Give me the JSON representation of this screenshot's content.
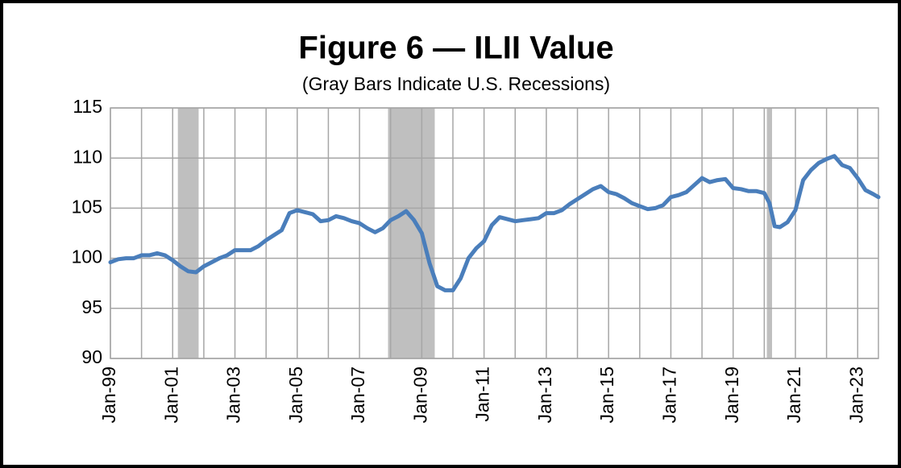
{
  "chart_data": {
    "type": "line",
    "title": "Figure 6 — ILII Value",
    "subtitle": "(Gray Bars Indicate U.S. Recessions)",
    "x": [
      "1999-01",
      "1999-04",
      "1999-07",
      "1999-10",
      "2000-01",
      "2000-04",
      "2000-07",
      "2000-10",
      "2001-01",
      "2001-04",
      "2001-07",
      "2001-10",
      "2002-01",
      "2002-04",
      "2002-07",
      "2002-10",
      "2003-01",
      "2003-04",
      "2003-07",
      "2003-10",
      "2004-01",
      "2004-04",
      "2004-07",
      "2004-10",
      "2005-01",
      "2005-04",
      "2005-07",
      "2005-10",
      "2006-01",
      "2006-04",
      "2006-07",
      "2006-10",
      "2007-01",
      "2007-04",
      "2007-07",
      "2007-10",
      "2008-01",
      "2008-04",
      "2008-07",
      "2008-10",
      "2009-01",
      "2009-04",
      "2009-07",
      "2009-10",
      "2010-01",
      "2010-04",
      "2010-07",
      "2010-10",
      "2011-01",
      "2011-04",
      "2011-07",
      "2011-10",
      "2012-01",
      "2012-04",
      "2012-07",
      "2012-10",
      "2013-01",
      "2013-04",
      "2013-07",
      "2013-10",
      "2014-01",
      "2014-04",
      "2014-07",
      "2014-10",
      "2015-01",
      "2015-04",
      "2015-07",
      "2015-10",
      "2016-01",
      "2016-04",
      "2016-07",
      "2016-10",
      "2017-01",
      "2017-04",
      "2017-07",
      "2017-10",
      "2018-01",
      "2018-04",
      "2018-07",
      "2018-10",
      "2019-01",
      "2019-04",
      "2019-07",
      "2019-10",
      "2020-01",
      "2020-03",
      "2020-05",
      "2020-07",
      "2020-10",
      "2021-01",
      "2021-04",
      "2021-07",
      "2021-10",
      "2022-01",
      "2022-04",
      "2022-07",
      "2022-10",
      "2023-01",
      "2023-04",
      "2023-07",
      "2023-09"
    ],
    "series": [
      {
        "name": "ILII Value",
        "color": "#4a7ebb",
        "values": [
          99.6,
          99.9,
          100.0,
          100.0,
          100.3,
          100.3,
          100.5,
          100.3,
          99.8,
          99.2,
          98.7,
          98.6,
          99.2,
          99.6,
          100.0,
          100.3,
          100.8,
          100.8,
          100.8,
          101.2,
          101.8,
          102.3,
          102.8,
          104.5,
          104.8,
          104.6,
          104.4,
          103.7,
          103.8,
          104.2,
          104.0,
          103.7,
          103.5,
          103.0,
          102.6,
          103.0,
          103.8,
          104.2,
          104.7,
          103.8,
          102.5,
          99.5,
          97.2,
          96.8,
          96.8,
          98.0,
          100.0,
          101.0,
          101.7,
          103.3,
          104.1,
          103.9,
          103.7,
          103.8,
          103.9,
          104.0,
          104.5,
          104.5,
          104.8,
          105.4,
          105.9,
          106.4,
          106.9,
          107.2,
          106.6,
          106.4,
          106.0,
          105.5,
          105.2,
          104.9,
          105.0,
          105.3,
          106.1,
          106.3,
          106.6,
          107.3,
          108.0,
          107.6,
          107.8,
          107.9,
          107.0,
          106.9,
          106.7,
          106.7,
          106.5,
          105.5,
          103.2,
          103.1,
          103.6,
          104.8,
          107.8,
          108.8,
          109.5,
          109.9,
          110.2,
          109.3,
          109.0,
          108.0,
          106.8,
          106.4,
          106.1
        ]
      }
    ],
    "recessions": [
      {
        "start": "2001-03",
        "end": "2001-11"
      },
      {
        "start": "2007-12",
        "end": "2009-06"
      },
      {
        "start": "2020-02",
        "end": "2020-04"
      }
    ],
    "recession_color": "#bfbfbf",
    "xlim": [
      "1999-01",
      "2023-09"
    ],
    "xticks": [
      {
        "value": "1999-01",
        "label": "Jan-99"
      },
      {
        "value": "2001-01",
        "label": "Jan-01"
      },
      {
        "value": "2003-01",
        "label": "Jan-03"
      },
      {
        "value": "2005-01",
        "label": "Jan-05"
      },
      {
        "value": "2007-01",
        "label": "Jan-07"
      },
      {
        "value": "2009-01",
        "label": "Jan-09"
      },
      {
        "value": "2011-01",
        "label": "Jan-11"
      },
      {
        "value": "2013-01",
        "label": "Jan-13"
      },
      {
        "value": "2015-01",
        "label": "Jan-15"
      },
      {
        "value": "2017-01",
        "label": "Jan-17"
      },
      {
        "value": "2019-01",
        "label": "Jan-19"
      },
      {
        "value": "2021-01",
        "label": "Jan-21"
      },
      {
        "value": "2023-01",
        "label": "Jan-23"
      }
    ],
    "xgrid": [
      "2000-01",
      "2002-01",
      "2004-01",
      "2006-01",
      "2008-01",
      "2010-01",
      "2012-01",
      "2014-01",
      "2016-01",
      "2018-01",
      "2020-01",
      "2022-01"
    ],
    "ylim": [
      90,
      115
    ],
    "yticks": [
      90,
      95,
      100,
      105,
      110,
      115
    ],
    "grid": true
  }
}
